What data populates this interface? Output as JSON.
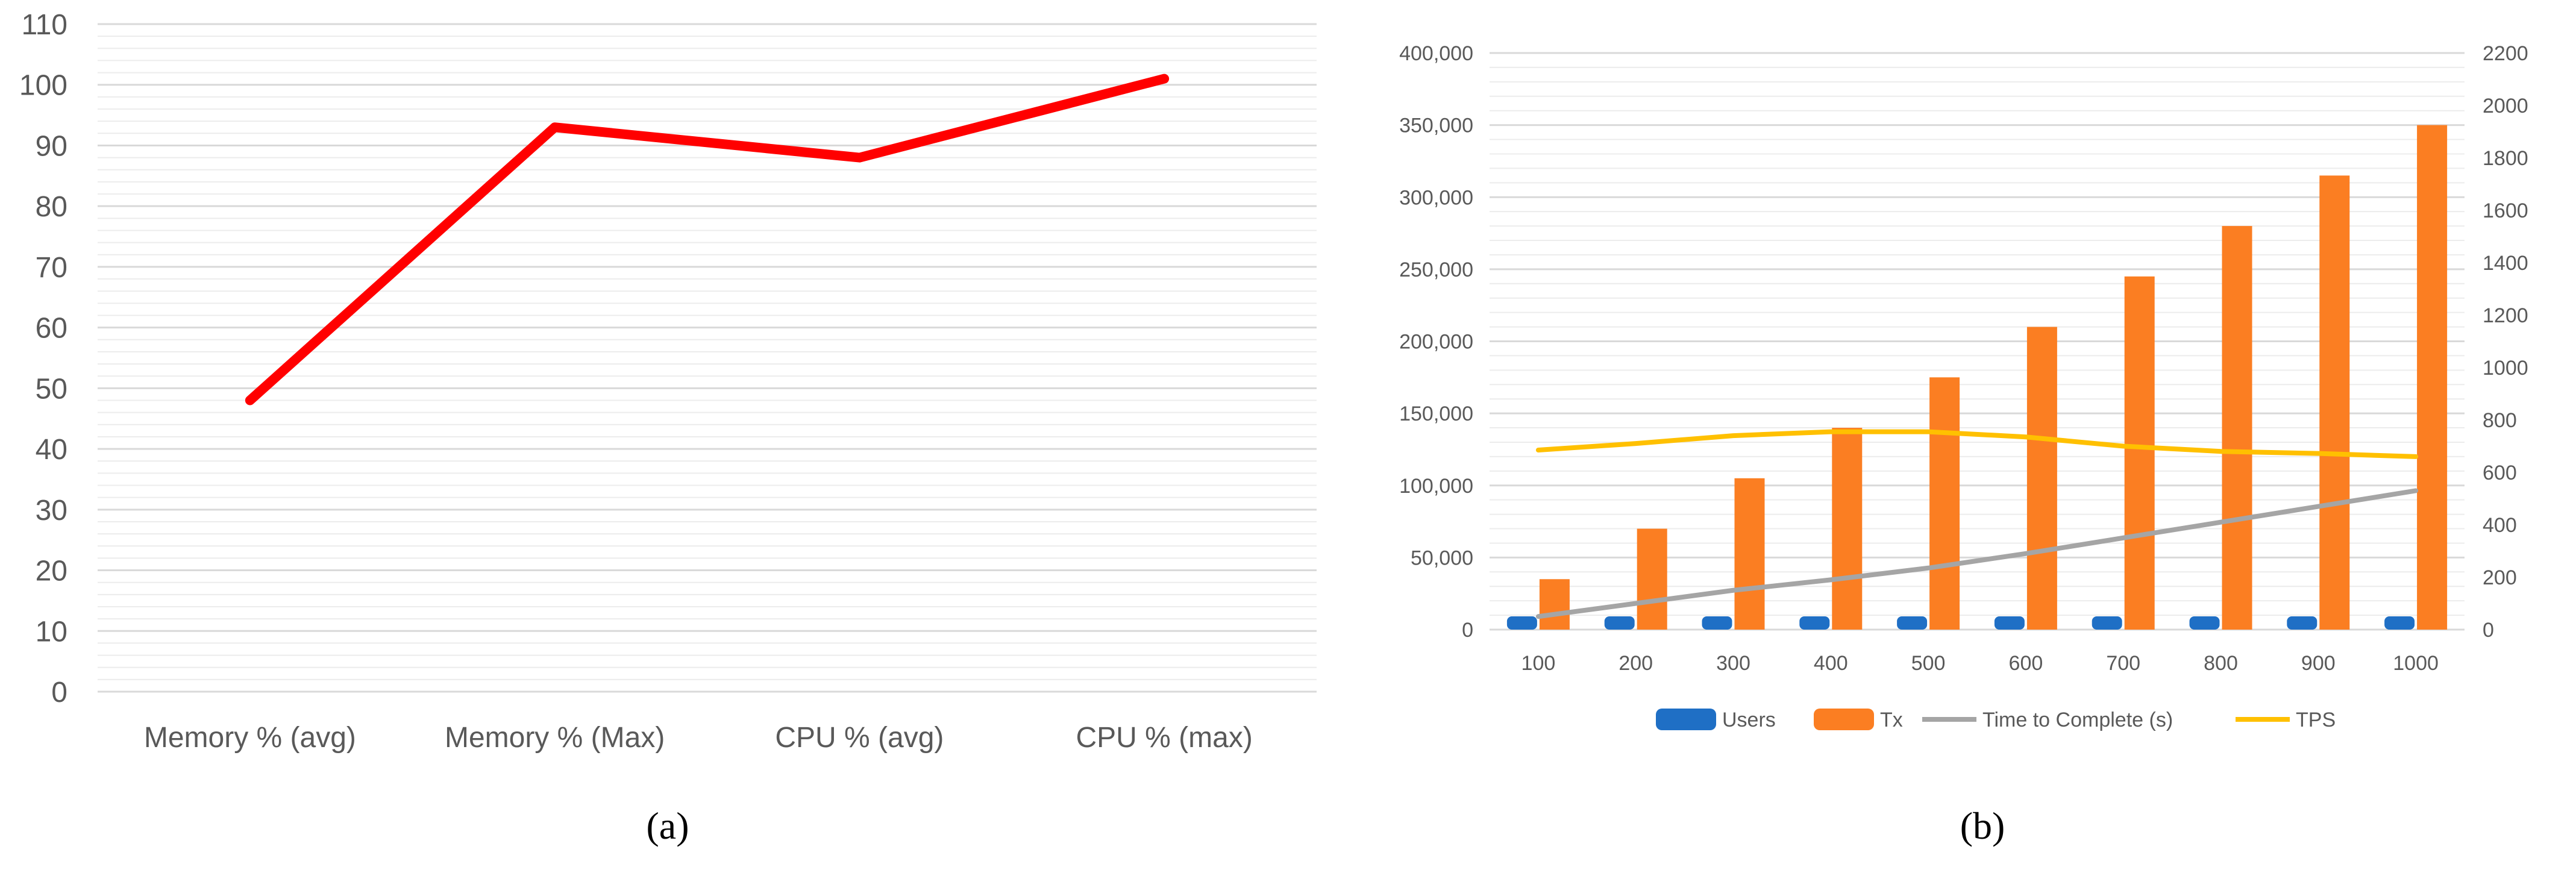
{
  "chart_data": [
    {
      "type": "line",
      "panel_label": "(a)",
      "title": "",
      "xlabel": "",
      "ylabel": "",
      "categories": [
        "Memory % (avg)",
        "Memory % (Max)",
        "CPU % (avg)",
        "CPU % (max)"
      ],
      "series": [
        {
          "values": [
            48,
            93,
            88,
            101
          ],
          "color": "#ff0000"
        }
      ],
      "ylim": [
        0,
        110
      ],
      "yticks": [
        0,
        10,
        20,
        30,
        40,
        50,
        60,
        70,
        80,
        90,
        100,
        110
      ],
      "ytick_labels": [
        "0",
        "10",
        "20",
        "30",
        "40",
        "50",
        "60",
        "70",
        "80",
        "90",
        "100",
        "110"
      ],
      "grid": true,
      "legend": "none"
    },
    {
      "type": "bar",
      "panel_label": "(b)",
      "title": "",
      "xlabel": "",
      "ylabel": "",
      "categories": [
        "100",
        "200",
        "300",
        "400",
        "500",
        "600",
        "700",
        "800",
        "900",
        "1000"
      ],
      "series": [
        {
          "name": "Users",
          "kind": "bar",
          "axis": "left",
          "color": "#1f6fc5",
          "values": [
            100,
            200,
            300,
            400,
            500,
            600,
            700,
            800,
            900,
            1000
          ]
        },
        {
          "name": "Tx",
          "kind": "bar",
          "axis": "left",
          "color": "#fb7e22",
          "values": [
            35000,
            70000,
            105000,
            140000,
            175000,
            210000,
            245000,
            280000,
            315000,
            350000
          ]
        },
        {
          "name": "Time to Complete (s)",
          "kind": "line",
          "axis": "right",
          "color": "#a5a5a5",
          "values": [
            50,
            100,
            150,
            190,
            235,
            290,
            350,
            410,
            470,
            530
          ]
        },
        {
          "name": "TPS",
          "kind": "line",
          "axis": "right",
          "color": "#ffc000",
          "values": [
            685,
            710,
            740,
            755,
            755,
            735,
            700,
            680,
            672,
            660
          ]
        }
      ],
      "ylim": [
        0,
        400000
      ],
      "yticks": [
        0,
        50000,
        100000,
        150000,
        200000,
        250000,
        300000,
        350000,
        400000
      ],
      "ytick_labels": [
        "0",
        "50,000",
        "100,000",
        "150,000",
        "200,000",
        "250,000",
        "300,000",
        "350,000",
        "400,000"
      ],
      "y2lim": [
        0,
        2200
      ],
      "y2ticks": [
        0,
        200,
        400,
        600,
        800,
        1000,
        1200,
        1400,
        1600,
        1800,
        2000,
        2200
      ],
      "y2tick_labels": [
        "0",
        "200",
        "400",
        "600",
        "800",
        "1000",
        "1200",
        "1400",
        "1600",
        "1800",
        "2000",
        "2200"
      ],
      "grid": true,
      "legend": "bottom"
    }
  ]
}
